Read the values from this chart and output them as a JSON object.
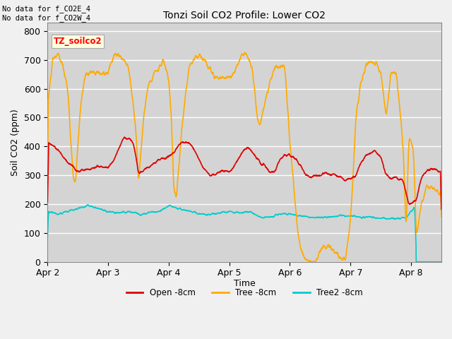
{
  "title": "Tonzi Soil CO2 Profile: Lower CO2",
  "ylabel": "Soil CO2 (ppm)",
  "xlabel": "Time",
  "top_note": "No data for f_CO2E_4\nNo data for f_CO2W_4",
  "legend_label": "TZ_soilco2",
  "ylim": [
    0,
    830
  ],
  "yticks": [
    0,
    100,
    200,
    300,
    400,
    500,
    600,
    700,
    800
  ],
  "bg_color": "#d4d4d4",
  "grid_color": "#ffffff",
  "fig_bg": "#f0f0f0",
  "series": {
    "open": {
      "label": "Open -8cm",
      "color": "#dd0000",
      "lw": 1.2
    },
    "tree": {
      "label": "Tree -8cm",
      "color": "#ffaa00",
      "lw": 1.2
    },
    "tree2": {
      "label": "Tree2 -8cm",
      "color": "#00cccc",
      "lw": 1.2
    }
  },
  "x_tick_labels": [
    "Apr 2",
    "Apr 3",
    "Apr 4",
    "Apr 5",
    "Apr 6",
    "Apr 7",
    "Apr 8"
  ],
  "x_tick_positions": [
    0,
    24,
    48,
    72,
    96,
    120,
    144
  ]
}
